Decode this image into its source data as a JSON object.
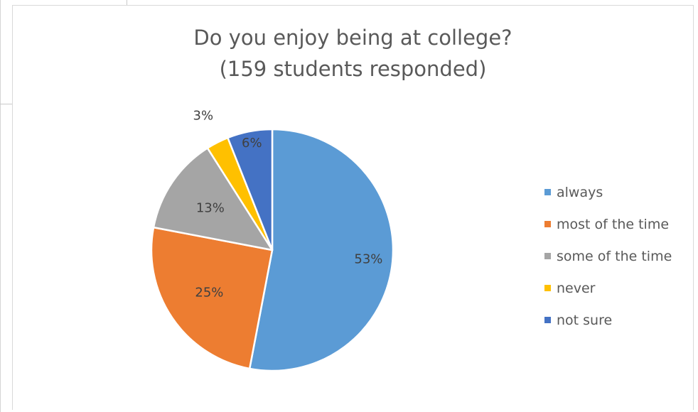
{
  "chart_data": {
    "type": "pie",
    "title": "Do you enjoy being at college?",
    "subtitle": "(159 students responded)",
    "categories": [
      "always",
      "most of the time",
      "some of the time",
      "never",
      "not sure"
    ],
    "values": [
      53,
      25,
      13,
      3,
      6
    ],
    "value_labels": [
      "53%",
      "25%",
      "13%",
      "3%",
      "6%"
    ],
    "colors": [
      "#5B9BD5",
      "#ED7D31",
      "#A5A5A5",
      "#FFC000",
      "#4472C4"
    ],
    "legend_position": "right"
  }
}
